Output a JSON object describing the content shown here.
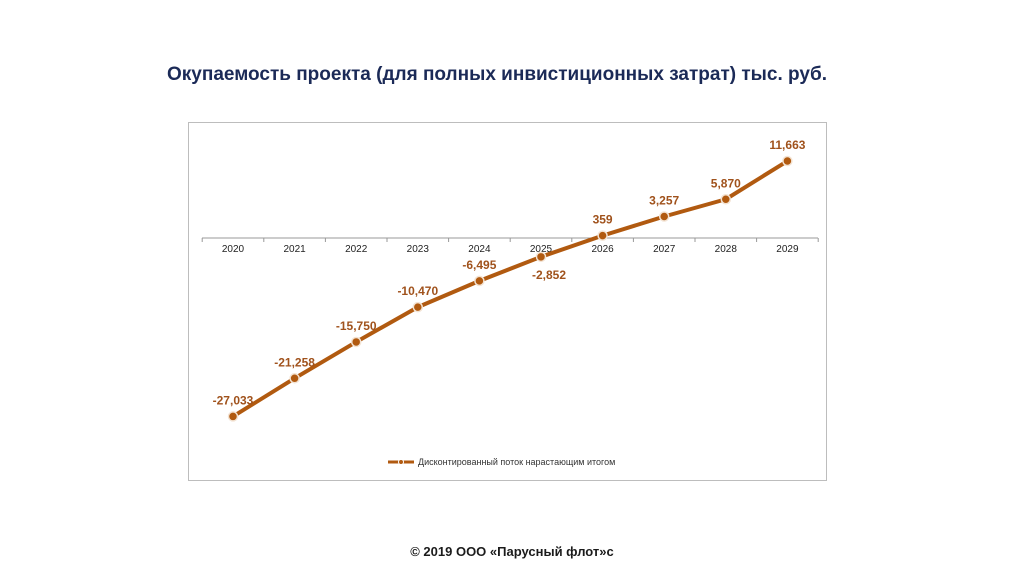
{
  "page": {
    "footer": "© 2019 ООО «Парусный флот»с"
  },
  "chart_data": {
    "type": "line",
    "title": "Окупаемость проекта (для полных инвистиционных затрат) тыс. руб.",
    "categories": [
      "2020",
      "2021",
      "2022",
      "2023",
      "2024",
      "2025",
      "2026",
      "2027",
      "2028",
      "2029"
    ],
    "series": [
      {
        "name": "Дисконтированный поток нарастающим итогом",
        "values": [
          -27033,
          -21258,
          -15750,
          -10470,
          -6495,
          -2852,
          359,
          3257,
          5870,
          11663
        ],
        "labels": [
          "-27,033",
          "-21,258",
          "-15,750",
          "-10,470",
          "-6,495",
          "-2,852",
          "359",
          "3,257",
          "5,870",
          "11,663"
        ]
      }
    ],
    "xlabel": "",
    "ylabel": "",
    "ylim": [
      -30000,
      13000
    ],
    "grid": false,
    "legend": "bottom",
    "colors": {
      "line": "#b15a10",
      "label": "#a0521c",
      "title": "#1b2a57"
    }
  }
}
